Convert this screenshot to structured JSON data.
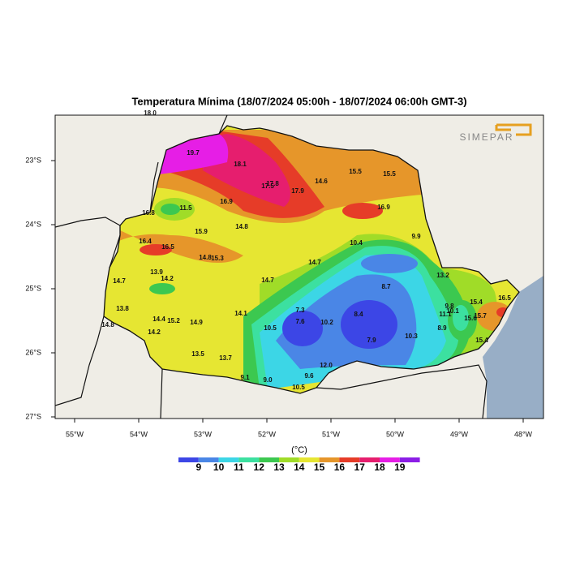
{
  "header": {
    "title": "Temperatura Mínima (18/07/2024 05:00h - 18/07/2024 06:00h GMT-3)",
    "logo": "SIMEPAR"
  },
  "axes": {
    "longitude_ticks": [
      "55°W",
      "54°W",
      "53°W",
      "52°W",
      "51°W",
      "50°W",
      "49°W",
      "48°W"
    ],
    "latitude_ticks": [
      "23°S",
      "24°S",
      "25°S",
      "26°S",
      "27°S"
    ]
  },
  "stations": [
    "18.0",
    "19.7",
    "18.1",
    "17.5",
    "17.8",
    "17.9",
    "14.6",
    "15.5",
    "15.5",
    "16.9",
    "11.5",
    "16.8",
    "16.9",
    "15.9",
    "14.8",
    "16.4",
    "16.5",
    "10.4",
    "9.9",
    "14.8",
    "15.3",
    "14.7",
    "13.9",
    "14.2",
    "14.7",
    "13.2",
    "14.7",
    "8.7",
    "13.8",
    "7.3",
    "8.4",
    "15.4",
    "16.5",
    "9.8",
    "10.1",
    "11.1",
    "15.7",
    "15.6",
    "14.1",
    "14.4",
    "15.2",
    "14.9",
    "7.6",
    "10.2",
    "10.5",
    "14.8",
    "14.2",
    "10.3",
    "8.9",
    "7.9",
    "15.4",
    "13.5",
    "13.7",
    "12.0",
    "9.1",
    "9.0",
    "9.6",
    "10.5"
  ],
  "colorbar": {
    "unit": "(°C)",
    "levels": [
      9,
      10,
      11,
      12,
      13,
      14,
      15,
      16,
      17,
      18,
      19
    ],
    "colors": [
      "#3c46e6",
      "#4a86e6",
      "#3cd6e6",
      "#3ce0a0",
      "#3cc850",
      "#a0dc28",
      "#e6e632",
      "#e6962a",
      "#e63c28",
      "#e61e6e",
      "#e61ee6",
      "#8c1ee6"
    ]
  }
}
